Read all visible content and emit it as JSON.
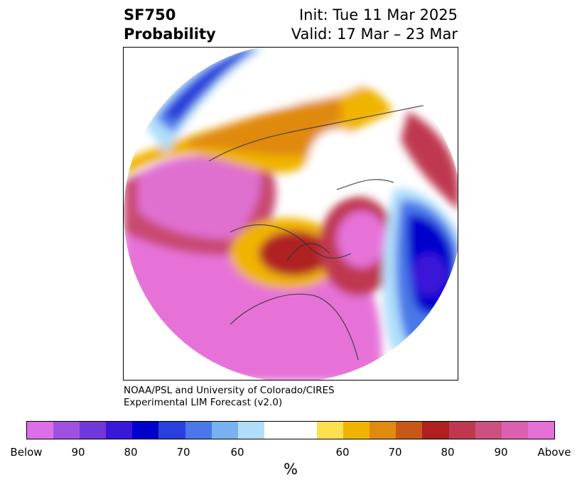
{
  "title": {
    "left_line1": "SF750",
    "left_line2": "Probability",
    "right_line1": "Init: Tue 11 Mar 2025",
    "right_line2": "Valid: 17 Mar – 23 Mar"
  },
  "credit": {
    "line1": "NOAA/PSL and University of Colorado/CIRES",
    "line2": "Experimental LIM Forecast (v2.0)"
  },
  "colorbar": {
    "colors": [
      "#dc6fe8",
      "#a050e0",
      "#7038d8",
      "#3a18d8",
      "#0000cd",
      "#2a40dc",
      "#4a78e8",
      "#78b0f0",
      "#b0defa",
      "#ffffff",
      "#ffffff",
      "#fde050",
      "#f0b400",
      "#e08a10",
      "#c85818",
      "#b02020",
      "#c03850",
      "#cc5080",
      "#dc60b0",
      "#e670d8"
    ],
    "tick_labels": [
      "Below",
      "90",
      "80",
      "70",
      "60",
      "60",
      "70",
      "80",
      "90",
      "Above"
    ],
    "unit": "%"
  }
}
